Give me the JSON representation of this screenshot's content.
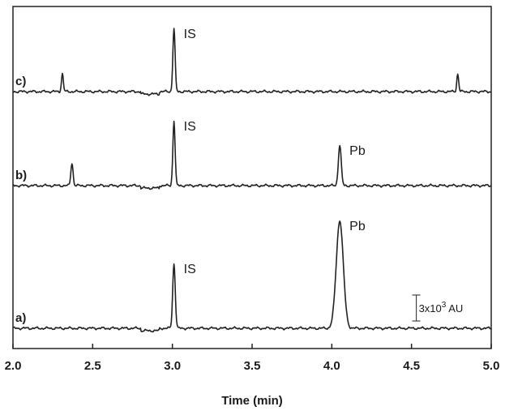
{
  "chart_data": {
    "type": "line",
    "xlabel": "Time (min)",
    "xlim": [
      2.0,
      5.0
    ],
    "xticks": [
      "2.0",
      "2.5",
      "3.0",
      "3.5",
      "4.0",
      "4.5",
      "5.0"
    ],
    "ylabel": "",
    "scale_bar": {
      "label_prefix": "3x10",
      "label_exp": "3",
      "label_suffix": " AU",
      "x": 4.53
    },
    "series": [
      {
        "name": "a)",
        "offset": 0,
        "peaks": [
          {
            "t": 3.01,
            "height": 80,
            "width": 0.008,
            "label": "IS"
          },
          {
            "t": 4.05,
            "height": 133,
            "width": 0.022,
            "label": "Pb"
          }
        ]
      },
      {
        "name": "b)",
        "offset": 176,
        "peaks": [
          {
            "t": 2.37,
            "height": 28,
            "width": 0.007,
            "label": ""
          },
          {
            "t": 3.01,
            "height": 80,
            "width": 0.007,
            "label": "IS"
          },
          {
            "t": 4.05,
            "height": 50,
            "width": 0.009,
            "label": "Pb"
          }
        ]
      },
      {
        "name": "c)",
        "offset": 292,
        "peaks": [
          {
            "t": 2.31,
            "height": 22,
            "width": 0.006,
            "label": ""
          },
          {
            "t": 3.01,
            "height": 78,
            "width": 0.007,
            "label": "IS"
          },
          {
            "t": 4.79,
            "height": 22,
            "width": 0.006,
            "label": ""
          }
        ]
      }
    ]
  }
}
